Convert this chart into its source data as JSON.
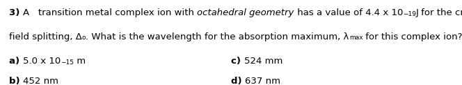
{
  "background_color": "#ffffff",
  "text_color": "#000000",
  "font_size": 9.5,
  "small_size": 6.5,
  "line1_bold": "3)",
  "line1_a": "A   transition metal complex ion with ",
  "line1_italic": "octahedral geometry",
  "line1_b": " has a value of 4.4 x 10",
  "line1_sup": "−19",
  "line1_c": "J for the crystal",
  "line2_a": "field splitting, Δ",
  "line2_sub": "o",
  "line2_b": ". What is the wavelength for the absorption maximum, λ",
  "line2_submax": "max",
  "line2_c": " for this complex ion?",
  "ans_a_label": "a)",
  "ans_a_text": "5.0 x 10",
  "ans_a_sup": "−15",
  "ans_a_end": " m",
  "ans_b_label": "b)",
  "ans_b_text": "452 nm",
  "ans_c_label": "c)",
  "ans_c_text": "524 mm",
  "ans_d_label": "d)",
  "ans_d_text": "637 nm",
  "fig_width": 6.64,
  "fig_height": 1.23,
  "dpi": 100
}
